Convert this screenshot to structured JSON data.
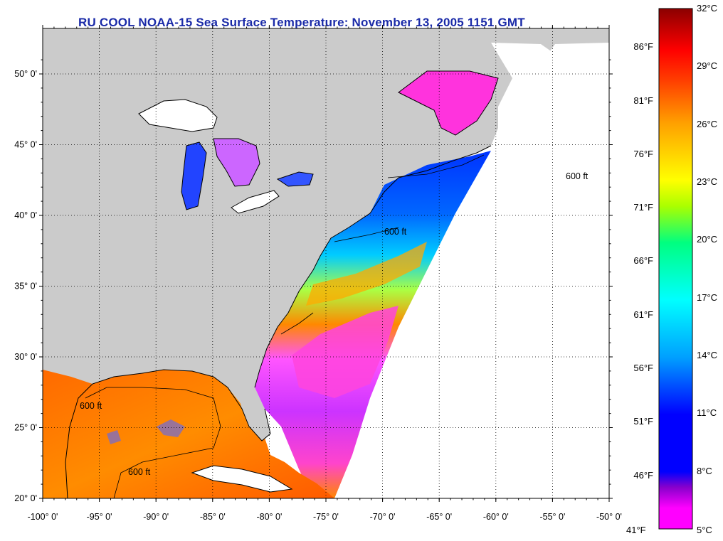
{
  "title": "RU COOL  NOAA-15  Sea Surface Temperature:  November 13, 2005 1151 GMT",
  "map": {
    "lat_labels": [
      "50° 0'",
      "45° 0'",
      "40° 0'",
      "35° 0'",
      "30° 0'",
      "25° 0'",
      "20° 0'"
    ],
    "lat_values": [
      50,
      45,
      40,
      35,
      30,
      25,
      20
    ],
    "lon_labels": [
      "-100° 0'",
      "-95° 0'",
      "-90° 0'",
      "-85° 0'",
      "-80° 0'",
      "-75° 0'",
      "-70° 0'",
      "-65° 0'",
      "-60° 0'",
      "-55° 0'",
      "-50° 0'"
    ],
    "lon_values": [
      -100,
      -95,
      -90,
      -85,
      -80,
      -75,
      -70,
      -65,
      -60,
      -55,
      -50
    ],
    "contour_label": "600 ft",
    "land_color": "#cbcbcb",
    "nodata_color": "#ffffff"
  },
  "colorbar": {
    "fahrenheit_labels": [
      "86°F",
      "81°F",
      "76°F",
      "71°F",
      "66°F",
      "61°F",
      "56°F",
      "51°F",
      "46°F",
      "41°F"
    ],
    "celsius_labels": [
      "32°C",
      "29°C",
      "26°C",
      "23°C",
      "20°C",
      "17°C",
      "14°C",
      "11°C",
      "8°C",
      "5°C"
    ],
    "colors": [
      "#ff00ff",
      "#cc44ee",
      "#0000ff",
      "#0088ff",
      "#00ffff",
      "#00ff88",
      "#ccff00",
      "#ffff00",
      "#ffa000",
      "#ff4000",
      "#ff0000",
      "#8b0000"
    ]
  }
}
